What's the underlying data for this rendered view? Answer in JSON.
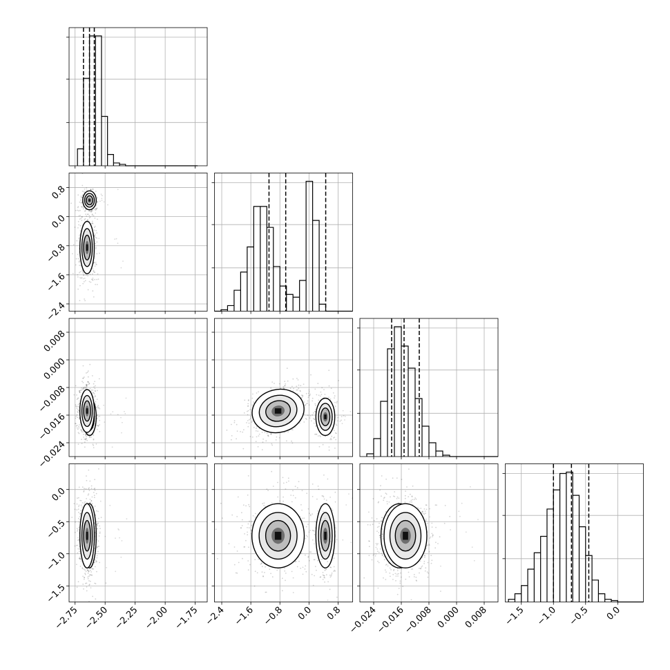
{
  "chart_data": {
    "type": "corner",
    "parameters": [
      {
        "range": [
          -2.8,
          -1.65
        ],
        "ticks": [
          -2.75,
          -2.5,
          -2.25,
          -2.0,
          -1.75
        ],
        "tick_labels": [
          "−2.75",
          "−2.50",
          "−2.25",
          "−2.00",
          "−1.75"
        ],
        "quantiles": [
          -2.68,
          -2.63,
          -2.59
        ],
        "hist_start": -2.73,
        "hist_width": 0.05,
        "hist_counts": [
          12,
          62,
          92,
          92,
          35,
          8,
          2,
          1,
          0,
          0,
          0,
          0,
          0,
          0,
          0,
          0,
          0,
          0,
          0,
          0
        ],
        "peak_marginal": 0.63
      },
      {
        "range": [
          -2.6,
          1.2
        ],
        "ticks": [
          -2.4,
          -1.6,
          -0.8,
          0.0,
          0.8
        ],
        "tick_labels": [
          "−2.4",
          "−1.6",
          "−0.8",
          "0.0",
          "0.8"
        ],
        "quantiles": [
          -1.1,
          -0.64,
          0.46
        ],
        "hist_start": -2.6,
        "hist_width": 0.18,
        "hist_counts": [
          0,
          1,
          4,
          15,
          28,
          46,
          75,
          75,
          60,
          32,
          18,
          12,
          10,
          22,
          93,
          65,
          5,
          0,
          0,
          0,
          0,
          0
        ],
        "peak_marginal": 0.48
      },
      {
        "range": [
          -0.028,
          0.012
        ],
        "ticks": [
          -0.024,
          -0.016,
          -0.008,
          0.0,
          0.008
        ],
        "tick_labels": [
          "−0.024",
          "−0.016",
          "−0.008",
          "0.000",
          "0.008"
        ],
        "quantiles": [
          -0.0188,
          -0.0152,
          -0.0108
        ],
        "hist_start": -0.026,
        "hist_width": 0.002,
        "hist_counts": [
          2,
          13,
          40,
          78,
          94,
          80,
          64,
          42,
          22,
          10,
          4,
          1,
          0,
          0,
          0,
          0,
          0,
          0,
          0,
          0
        ],
        "peak_marginal": 0.56
      },
      {
        "range": [
          -1.75,
          0.4
        ],
        "ticks": [
          -1.5,
          -1.0,
          -0.5,
          0.0
        ],
        "tick_labels": [
          "−1.5",
          "−1.0",
          "−0.5",
          "0.0"
        ],
        "quantiles": [
          -1.0,
          -0.72,
          -0.45
        ],
        "hist_start": -1.7,
        "hist_width": 0.1,
        "hist_counts": [
          2,
          6,
          12,
          24,
          36,
          48,
          68,
          82,
          94,
          95,
          78,
          55,
          34,
          16,
          6,
          2,
          1,
          0,
          0,
          0,
          0,
          0
        ],
        "peak_marginal": 0.48
      }
    ],
    "modes": [
      {
        "center": [
          -2.63,
          0.45,
          -0.0165,
          -0.72
        ],
        "sd": [
          0.028,
          0.13,
          0.0027,
          0.25
        ],
        "weight": 0.35
      },
      {
        "center": [
          -2.65,
          -0.85,
          -0.0148,
          -0.72
        ],
        "sd": [
          0.03,
          0.36,
          0.0031,
          0.25
        ],
        "weight": 0.65
      }
    ],
    "correlated_pairs": [
      {
        "rows": [
          1,
          2
        ],
        "mode": 1,
        "rho": -0.4
      }
    ],
    "grid": true
  }
}
